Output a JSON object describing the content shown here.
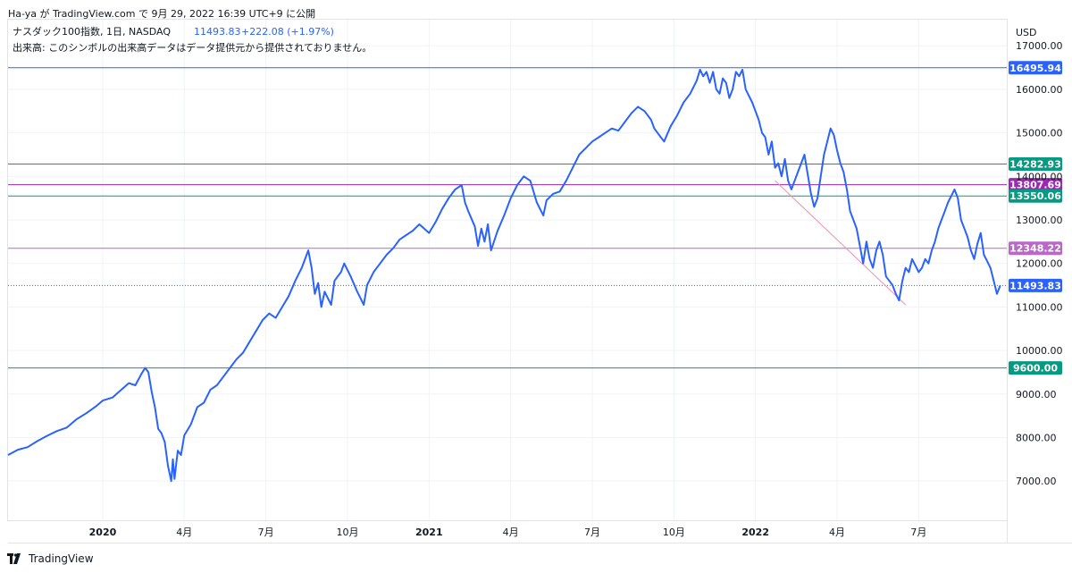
{
  "header": "Ha-ya が TradingView.com で 9月 29, 2022 16:39 UTC+9 に公開",
  "legend": {
    "symbol": "ナスダック100指数, 1日, NASDAQ",
    "price": "11493.83",
    "change": "+222.08 (+1.97%)",
    "volume_note": "出来高: このシンボルの出来高データはデータ提供元から提供されておりません。"
  },
  "footer_brand": "TradingView",
  "colors": {
    "line": "#2962ff",
    "blue_level": "#2962ff",
    "teal_level": "#089981",
    "purple_level": "#9c27b0",
    "light_purple_level": "#ba68c8",
    "trendline": "#f48fb1",
    "grid": "#f0f3fa",
    "axis_border": "#e0e3eb",
    "text": "#131722"
  },
  "chart_data": {
    "type": "line",
    "title": "ナスダック100指数, 1日, NASDAQ",
    "currency": "USD",
    "ylim": [
      6100,
      17600
    ],
    "xlim": [
      2019.71,
      2022.77
    ],
    "y_ticks": [
      "7000.00",
      "8000.00",
      "9000.00",
      "10000.00",
      "11000.00",
      "12000.00",
      "13000.00",
      "14000.00",
      "15000.00",
      "16000.00",
      "17000.00"
    ],
    "x_ticks": [
      {
        "t": 2020.0,
        "label": "2020",
        "bold": true
      },
      {
        "t": 2020.25,
        "label": "4月",
        "bold": false
      },
      {
        "t": 2020.5,
        "label": "7月",
        "bold": false
      },
      {
        "t": 2020.75,
        "label": "10月",
        "bold": false
      },
      {
        "t": 2021.0,
        "label": "2021",
        "bold": true
      },
      {
        "t": 2021.25,
        "label": "4月",
        "bold": false
      },
      {
        "t": 2021.5,
        "label": "7月",
        "bold": false
      },
      {
        "t": 2021.75,
        "label": "10月",
        "bold": false
      },
      {
        "t": 2022.0,
        "label": "2022",
        "bold": true
      },
      {
        "t": 2022.25,
        "label": "4月",
        "bold": false
      },
      {
        "t": 2022.5,
        "label": "7月",
        "bold": false
      }
    ],
    "levels": [
      {
        "value": 16495.94,
        "label": "16495.94",
        "color": "#2962ff",
        "style": "solid"
      },
      {
        "value": 14282.93,
        "label": "14282.93",
        "color": "#089981",
        "style": "solid"
      },
      {
        "value": 13807.69,
        "label": "13807.69",
        "color": "#9c27b0",
        "style": "solid"
      },
      {
        "value": 13550.06,
        "label": "13550.06",
        "color": "#089981",
        "style": "solid"
      },
      {
        "value": 12348.22,
        "label": "12348.22",
        "color": "#ba68c8",
        "style": "solid"
      },
      {
        "value": 11493.83,
        "label": "11493.83",
        "color": "#2962ff",
        "style": "dotted"
      },
      {
        "value": 9600.0,
        "label": "9600.00",
        "color": "#089981",
        "style": "solid"
      }
    ],
    "trendline": [
      [
        2022.06,
        13900
      ],
      [
        2022.46,
        11050
      ]
    ],
    "series": [
      {
        "points": [
          [
            2019.71,
            7600
          ],
          [
            2019.74,
            7720
          ],
          [
            2019.77,
            7780
          ],
          [
            2019.8,
            7920
          ],
          [
            2019.83,
            8040
          ],
          [
            2019.86,
            8150
          ],
          [
            2019.89,
            8230
          ],
          [
            2019.92,
            8420
          ],
          [
            2019.95,
            8560
          ],
          [
            2019.98,
            8720
          ],
          [
            2020.0,
            8850
          ],
          [
            2020.03,
            8920
          ],
          [
            2020.05,
            9050
          ],
          [
            2020.08,
            9250
          ],
          [
            2020.1,
            9200
          ],
          [
            2020.12,
            9480
          ],
          [
            2020.13,
            9600
          ],
          [
            2020.14,
            9500
          ],
          [
            2020.15,
            9050
          ],
          [
            2020.16,
            8700
          ],
          [
            2020.17,
            8200
          ],
          [
            2020.18,
            8100
          ],
          [
            2020.19,
            7900
          ],
          [
            2020.2,
            7350
          ],
          [
            2020.21,
            7000
          ],
          [
            2020.215,
            7500
          ],
          [
            2020.22,
            7050
          ],
          [
            2020.23,
            7700
          ],
          [
            2020.24,
            7600
          ],
          [
            2020.25,
            8050
          ],
          [
            2020.27,
            8300
          ],
          [
            2020.29,
            8700
          ],
          [
            2020.31,
            8800
          ],
          [
            2020.33,
            9100
          ],
          [
            2020.35,
            9200
          ],
          [
            2020.37,
            9400
          ],
          [
            2020.39,
            9600
          ],
          [
            2020.41,
            9800
          ],
          [
            2020.43,
            9950
          ],
          [
            2020.45,
            10200
          ],
          [
            2020.47,
            10450
          ],
          [
            2020.49,
            10700
          ],
          [
            2020.51,
            10850
          ],
          [
            2020.53,
            10750
          ],
          [
            2020.55,
            11000
          ],
          [
            2020.57,
            11250
          ],
          [
            2020.59,
            11600
          ],
          [
            2020.61,
            11900
          ],
          [
            2020.63,
            12300
          ],
          [
            2020.64,
            11900
          ],
          [
            2020.65,
            11300
          ],
          [
            2020.66,
            11550
          ],
          [
            2020.67,
            11000
          ],
          [
            2020.68,
            11350
          ],
          [
            2020.7,
            11050
          ],
          [
            2020.71,
            11600
          ],
          [
            2020.73,
            11800
          ],
          [
            2020.74,
            12000
          ],
          [
            2020.76,
            11700
          ],
          [
            2020.78,
            11350
          ],
          [
            2020.79,
            11200
          ],
          [
            2020.8,
            11050
          ],
          [
            2020.81,
            11500
          ],
          [
            2020.83,
            11800
          ],
          [
            2020.85,
            12000
          ],
          [
            2020.87,
            12200
          ],
          [
            2020.89,
            12350
          ],
          [
            2020.91,
            12550
          ],
          [
            2020.93,
            12650
          ],
          [
            2020.95,
            12750
          ],
          [
            2020.97,
            12900
          ],
          [
            2021.0,
            12700
          ],
          [
            2021.02,
            12950
          ],
          [
            2021.04,
            13250
          ],
          [
            2021.06,
            13500
          ],
          [
            2021.08,
            13700
          ],
          [
            2021.1,
            13800
          ],
          [
            2021.11,
            13400
          ],
          [
            2021.12,
            13200
          ],
          [
            2021.14,
            12850
          ],
          [
            2021.15,
            12400
          ],
          [
            2021.16,
            12800
          ],
          [
            2021.17,
            12500
          ],
          [
            2021.18,
            12900
          ],
          [
            2021.19,
            12300
          ],
          [
            2021.21,
            12750
          ],
          [
            2021.23,
            13100
          ],
          [
            2021.25,
            13500
          ],
          [
            2021.27,
            13800
          ],
          [
            2021.29,
            14000
          ],
          [
            2021.31,
            13900
          ],
          [
            2021.33,
            13400
          ],
          [
            2021.35,
            13100
          ],
          [
            2021.36,
            13450
          ],
          [
            2021.38,
            13600
          ],
          [
            2021.4,
            13650
          ],
          [
            2021.42,
            13900
          ],
          [
            2021.44,
            14200
          ],
          [
            2021.46,
            14500
          ],
          [
            2021.48,
            14650
          ],
          [
            2021.5,
            14800
          ],
          [
            2021.52,
            14900
          ],
          [
            2021.54,
            15000
          ],
          [
            2021.56,
            15100
          ],
          [
            2021.58,
            15050
          ],
          [
            2021.6,
            15250
          ],
          [
            2021.62,
            15450
          ],
          [
            2021.64,
            15600
          ],
          [
            2021.66,
            15500
          ],
          [
            2021.68,
            15300
          ],
          [
            2021.69,
            15100
          ],
          [
            2021.71,
            14900
          ],
          [
            2021.72,
            14800
          ],
          [
            2021.74,
            15150
          ],
          [
            2021.76,
            15400
          ],
          [
            2021.78,
            15700
          ],
          [
            2021.8,
            15900
          ],
          [
            2021.82,
            16200
          ],
          [
            2021.83,
            16450
          ],
          [
            2021.84,
            16300
          ],
          [
            2021.85,
            16400
          ],
          [
            2021.86,
            16150
          ],
          [
            2021.87,
            16400
          ],
          [
            2021.88,
            16000
          ],
          [
            2021.89,
            15900
          ],
          [
            2021.9,
            16250
          ],
          [
            2021.91,
            16150
          ],
          [
            2021.92,
            15800
          ],
          [
            2021.93,
            16000
          ],
          [
            2021.94,
            16400
          ],
          [
            2021.95,
            16300
          ],
          [
            2021.96,
            16450
          ],
          [
            2021.97,
            16000
          ],
          [
            2021.99,
            15700
          ],
          [
            2022.01,
            15300
          ],
          [
            2022.02,
            15000
          ],
          [
            2022.03,
            14900
          ],
          [
            2022.04,
            14500
          ],
          [
            2022.05,
            14800
          ],
          [
            2022.06,
            14200
          ],
          [
            2022.07,
            14300
          ],
          [
            2022.08,
            14000
          ],
          [
            2022.09,
            14400
          ],
          [
            2022.1,
            13900
          ],
          [
            2022.11,
            13700
          ],
          [
            2022.13,
            14100
          ],
          [
            2022.15,
            14500
          ],
          [
            2022.17,
            13600
          ],
          [
            2022.18,
            13300
          ],
          [
            2022.19,
            13500
          ],
          [
            2022.2,
            14000
          ],
          [
            2022.21,
            14500
          ],
          [
            2022.22,
            14800
          ],
          [
            2022.23,
            15100
          ],
          [
            2022.24,
            14950
          ],
          [
            2022.25,
            14600
          ],
          [
            2022.26,
            14300
          ],
          [
            2022.27,
            14100
          ],
          [
            2022.28,
            13700
          ],
          [
            2022.29,
            13200
          ],
          [
            2022.3,
            13000
          ],
          [
            2022.31,
            12800
          ],
          [
            2022.32,
            12400
          ],
          [
            2022.33,
            12000
          ],
          [
            2022.34,
            12500
          ],
          [
            2022.35,
            12100
          ],
          [
            2022.36,
            11900
          ],
          [
            2022.37,
            12300
          ],
          [
            2022.38,
            12500
          ],
          [
            2022.39,
            12200
          ],
          [
            2022.4,
            11700
          ],
          [
            2022.41,
            11600
          ],
          [
            2022.42,
            11500
          ],
          [
            2022.43,
            11300
          ],
          [
            2022.44,
            11150
          ],
          [
            2022.45,
            11600
          ],
          [
            2022.46,
            11900
          ],
          [
            2022.47,
            11800
          ],
          [
            2022.48,
            12100
          ],
          [
            2022.49,
            11950
          ],
          [
            2022.5,
            11800
          ],
          [
            2022.51,
            11900
          ],
          [
            2022.52,
            12100
          ],
          [
            2022.53,
            12000
          ],
          [
            2022.54,
            12300
          ],
          [
            2022.55,
            12500
          ],
          [
            2022.56,
            12800
          ],
          [
            2022.57,
            13000
          ],
          [
            2022.58,
            13200
          ],
          [
            2022.59,
            13400
          ],
          [
            2022.6,
            13550
          ],
          [
            2022.61,
            13700
          ],
          [
            2022.62,
            13500
          ],
          [
            2022.63,
            13000
          ],
          [
            2022.64,
            12800
          ],
          [
            2022.65,
            12600
          ],
          [
            2022.66,
            12300
          ],
          [
            2022.67,
            12100
          ],
          [
            2022.68,
            12450
          ],
          [
            2022.69,
            12700
          ],
          [
            2022.7,
            12200
          ],
          [
            2022.71,
            12050
          ],
          [
            2022.72,
            11900
          ],
          [
            2022.73,
            11600
          ],
          [
            2022.74,
            11300
          ],
          [
            2022.75,
            11493.83
          ]
        ]
      }
    ]
  }
}
